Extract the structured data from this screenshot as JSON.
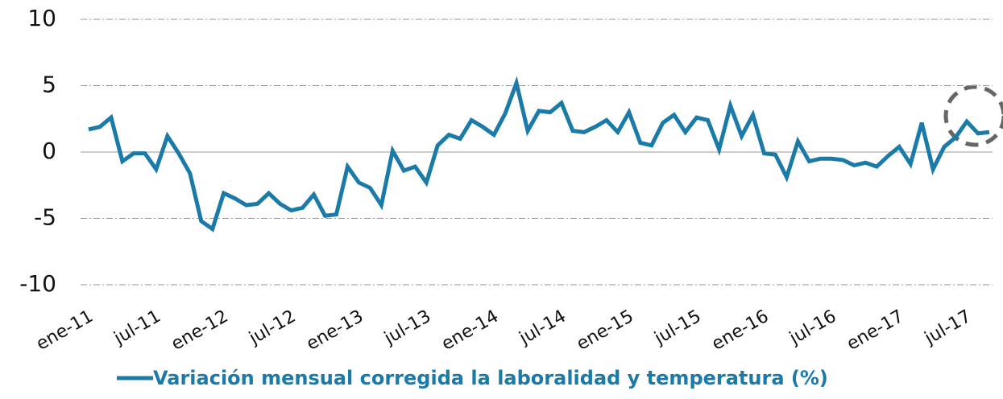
{
  "chart_data": {
    "type": "line",
    "categories": [
      "ene-11",
      null,
      null,
      null,
      null,
      null,
      "jul-11",
      null,
      null,
      null,
      null,
      null,
      "ene-12",
      null,
      null,
      null,
      null,
      null,
      "jul-12",
      null,
      null,
      null,
      null,
      null,
      "ene-13",
      null,
      null,
      null,
      null,
      null,
      "jul-13",
      null,
      null,
      null,
      null,
      null,
      "ene-14",
      null,
      null,
      null,
      null,
      null,
      "jul-14",
      null,
      null,
      null,
      null,
      null,
      "ene-15",
      null,
      null,
      null,
      null,
      null,
      "jul-15",
      null,
      null,
      null,
      null,
      null,
      "ene-16",
      null,
      null,
      null,
      null,
      null,
      "jul-16",
      null,
      null,
      null,
      null,
      null,
      "ene-17",
      null,
      null,
      null,
      null,
      null,
      "jul-17",
      null,
      null
    ],
    "series": [
      {
        "name": "Variación mensual corregida la laboralidad y temperatura (%)",
        "color": "#1a7aa8",
        "values": [
          1.7,
          1.9,
          2.6,
          -0.7,
          -0.1,
          -0.1,
          -1.3,
          1.2,
          -0.1,
          -1.6,
          -5.2,
          -5.8,
          -3.1,
          -3.5,
          -4.0,
          -3.9,
          -3.1,
          -3.9,
          -4.4,
          -4.2,
          -3.2,
          -4.8,
          -4.7,
          -1.1,
          -2.3,
          -2.7,
          -4.0,
          0.1,
          -1.4,
          -1.1,
          -2.3,
          0.5,
          1.3,
          1.0,
          2.4,
          1.9,
          1.3,
          2.9,
          5.2,
          1.6,
          3.1,
          3.0,
          3.7,
          1.6,
          1.5,
          1.9,
          2.4,
          1.5,
          3.0,
          0.7,
          0.5,
          2.2,
          2.8,
          1.5,
          2.6,
          2.4,
          0.2,
          3.5,
          1.2,
          2.8,
          -0.1,
          -0.2,
          -1.9,
          0.8,
          -0.7,
          -0.5,
          -0.5,
          -0.6,
          -1.0,
          -0.8,
          -1.1,
          -0.3,
          0.4,
          -0.9,
          2.2,
          -1.3,
          0.4,
          1.1,
          2.3,
          1.4,
          1.5
        ]
      }
    ],
    "ylim": [
      -10,
      10
    ],
    "yticks": [
      -10,
      -5,
      0,
      5,
      10
    ],
    "grid": true,
    "legend": "bottom"
  }
}
